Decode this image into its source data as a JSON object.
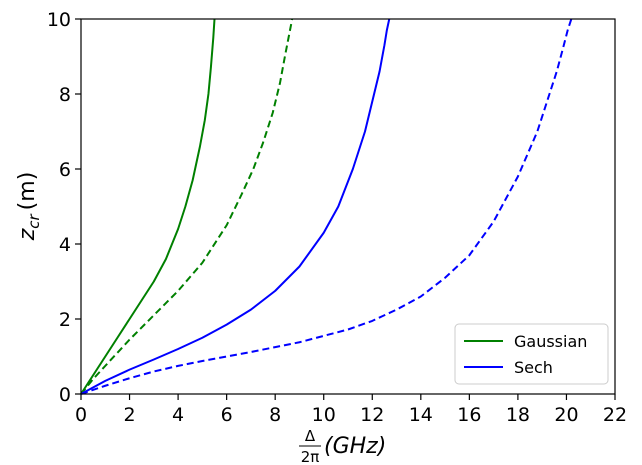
{
  "chart_data": {
    "type": "line",
    "xlabel": {
      "numerator": "Δ",
      "denominator": "2π",
      "rest": "(GHz)"
    },
    "ylabel": {
      "base": "z",
      "sub": "cr",
      "rest": "(m)"
    },
    "xlim": [
      0,
      22
    ],
    "ylim": [
      0,
      10
    ],
    "xticks": [
      0,
      2,
      4,
      6,
      8,
      10,
      12,
      14,
      16,
      18,
      20,
      22
    ],
    "yticks": [
      0,
      2,
      4,
      6,
      8,
      10
    ],
    "grid": false,
    "legend": {
      "placement": "bottom-right",
      "entries": [
        {
          "label": "Gaussian",
          "color": "#008000"
        },
        {
          "label": "Sech",
          "color": "#0000ff"
        }
      ]
    },
    "series": [
      {
        "profile": "Gaussian",
        "style": "solid",
        "color": "#008000",
        "x": [
          0,
          0.3,
          0.6,
          1.0,
          1.5,
          2.0,
          2.5,
          3.0,
          3.5,
          4.0,
          4.3,
          4.6,
          4.9,
          5.1,
          5.25,
          5.35,
          5.45,
          5.5
        ],
        "y": [
          0,
          0.3,
          0.6,
          1.0,
          1.5,
          2.0,
          2.5,
          3.0,
          3.6,
          4.4,
          5.0,
          5.7,
          6.6,
          7.3,
          8.0,
          8.7,
          9.5,
          10.0
        ]
      },
      {
        "profile": "Gaussian",
        "style": "dashed",
        "color": "#008000",
        "x": [
          0,
          0.5,
          1.0,
          2.0,
          3.0,
          4.0,
          5.0,
          6.0,
          6.6,
          7.1,
          7.5,
          7.9,
          8.2,
          8.4,
          8.55,
          8.7
        ],
        "y": [
          0,
          0.4,
          0.75,
          1.45,
          2.1,
          2.75,
          3.5,
          4.5,
          5.3,
          6.0,
          6.7,
          7.5,
          8.3,
          9.0,
          9.5,
          10.0
        ]
      },
      {
        "profile": "Sech",
        "style": "solid",
        "color": "#0000ff",
        "x": [
          0,
          1,
          2,
          3,
          4,
          5,
          6,
          7,
          8,
          9,
          10,
          10.6,
          11.2,
          11.7,
          12.0,
          12.3,
          12.5,
          12.6,
          12.7
        ],
        "y": [
          0,
          0.35,
          0.65,
          0.92,
          1.2,
          1.5,
          1.85,
          2.25,
          2.75,
          3.4,
          4.3,
          5.0,
          6.0,
          7.0,
          7.8,
          8.6,
          9.3,
          9.7,
          10.0
        ]
      },
      {
        "profile": "Sech",
        "style": "dashed",
        "color": "#0000ff",
        "x": [
          0,
          1,
          2,
          3,
          4,
          5,
          6,
          7,
          8,
          9,
          10,
          11,
          12,
          13,
          14,
          15,
          16,
          17,
          18,
          18.8,
          19.3,
          19.6,
          19.85,
          20.05,
          20.2
        ],
        "y": [
          0,
          0.22,
          0.42,
          0.6,
          0.75,
          0.88,
          1.0,
          1.12,
          1.25,
          1.38,
          1.55,
          1.72,
          1.95,
          2.25,
          2.6,
          3.1,
          3.7,
          4.6,
          5.8,
          7.0,
          8.0,
          8.6,
          9.2,
          9.7,
          10.0
        ]
      }
    ]
  }
}
